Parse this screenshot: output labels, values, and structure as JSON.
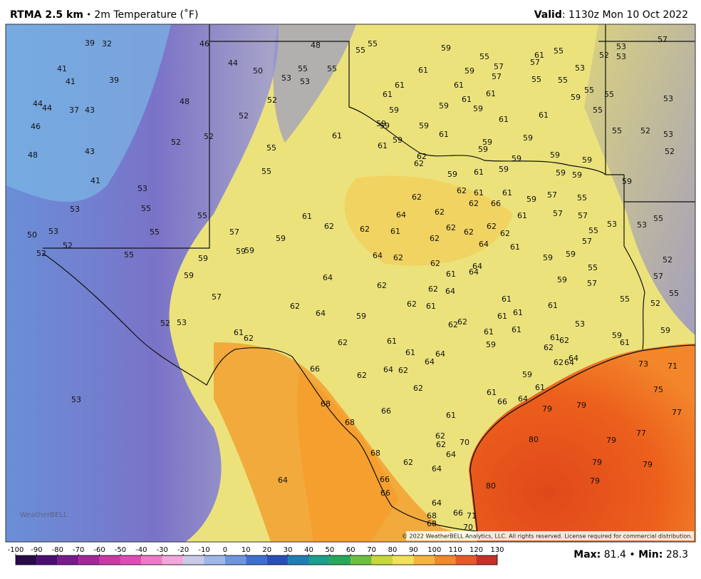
{
  "header": {
    "title": "RTMA 2.5 km",
    "separator": "•",
    "subtitle": "2m Temperature (˚F)",
    "valid_label": "Valid",
    "valid_text": ": 1130z Mon 10 Oct 2022"
  },
  "colorbar": {
    "ticks": [
      -100,
      -90,
      -80,
      -70,
      -60,
      -50,
      -40,
      -30,
      -20,
      -10,
      0,
      10,
      20,
      30,
      40,
      50,
      60,
      70,
      80,
      90,
      100,
      110,
      120,
      130
    ]
  },
  "footer": {
    "max_label": "Max:",
    "max": 81.4,
    "separator": "•",
    "min_label": "Min:",
    "min": 28.3
  },
  "copyright": "© 2022 WeatherBELL Analytics, LLC. All rights reserved. License required for commercial distribution.",
  "logo": "WeatherBELL",
  "stations": [
    39,
    32,
    46,
    41,
    41,
    39,
    44,
    44,
    37,
    43,
    46,
    48,
    52,
    52,
    52,
    52,
    43,
    48,
    41,
    53,
    53,
    55,
    55,
    55,
    50,
    53,
    52,
    52,
    55,
    48,
    44,
    50,
    53,
    55,
    53,
    55,
    55,
    55,
    55,
    55,
    57,
    59,
    59,
    59,
    59,
    59,
    57,
    52,
    53,
    53,
    61,
    62,
    61,
    62,
    62,
    61,
    64,
    62,
    62,
    62,
    62,
    62,
    62,
    62,
    64,
    62,
    64,
    62,
    62,
    64,
    59,
    62,
    61,
    62,
    64,
    61,
    64,
    64,
    62,
    64,
    61,
    59,
    55,
    61,
    57,
    55,
    61,
    59,
    57,
    57,
    55,
    55,
    53,
    61,
    61,
    61,
    61,
    61,
    59,
    59,
    59,
    59,
    55,
    55,
    53,
    55,
    61,
    61,
    59,
    59,
    59,
    61,
    61,
    59,
    61,
    59,
    59,
    59,
    62,
    62,
    59,
    61,
    59,
    59,
    59,
    59,
    59,
    59,
    59,
    55,
    52,
    53,
    52,
    57,
    53,
    53,
    52,
    62,
    61,
    62,
    66,
    61,
    59,
    57,
    55,
    61,
    57,
    57,
    55,
    53,
    53,
    55,
    57,
    59,
    59,
    55,
    59,
    57,
    55,
    57,
    52,
    55,
    52,
    59,
    59,
    61,
    61,
    61,
    61,
    61,
    53,
    61,
    61,
    62,
    62,
    61,
    59,
    61,
    62,
    62,
    64,
    62,
    64,
    62,
    61,
    64,
    64,
    66,
    62,
    64,
    62,
    62,
    59,
    61,
    61,
    66,
    64,
    66,
    61,
    68,
    68,
    79,
    79,
    75,
    77,
    73,
    71,
    77,
    80,
    79,
    62,
    62,
    70,
    64,
    68,
    62,
    64,
    79,
    79,
    79,
    80,
    66,
    66,
    64,
    64,
    68,
    68,
    66,
    71,
    70
  ]
}
